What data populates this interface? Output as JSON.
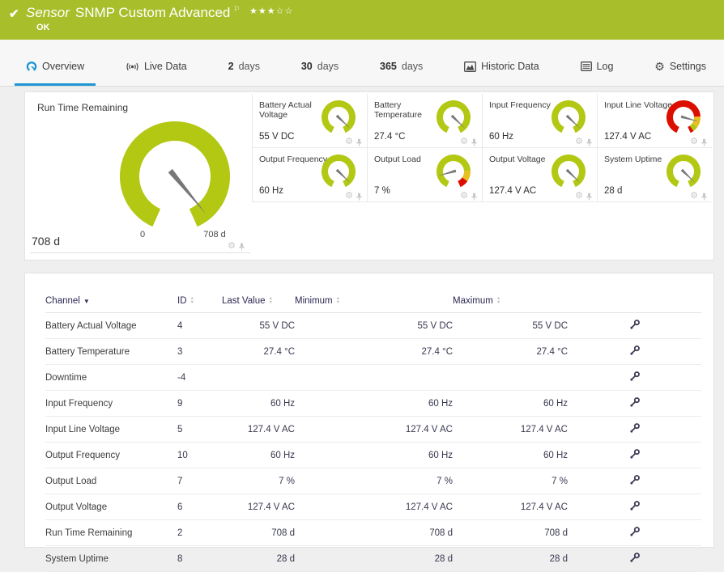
{
  "header": {
    "kind_label": "Sensor",
    "title": "SNMP Custom Advanced",
    "status": "OK",
    "stars_text": "★★★☆☆",
    "stars_filled": 3,
    "stars_total": 5
  },
  "tabs": [
    {
      "label": "Overview",
      "active": true
    },
    {
      "label": "Live Data"
    },
    {
      "number": "2",
      "label": "days"
    },
    {
      "number": "30",
      "label": "days"
    },
    {
      "number": "365",
      "label": "days"
    },
    {
      "label": "Historic Data"
    },
    {
      "label": "Log"
    },
    {
      "label": "Settings"
    }
  ],
  "gauges": {
    "main": {
      "title": "Run Time Remaining",
      "value": "708 d",
      "scale_min_label": "0",
      "scale_max_label": "708 d",
      "segments": [
        {
          "color": "#b3c813",
          "from": 0,
          "to": 1
        }
      ],
      "needle": 0.95
    },
    "small": [
      {
        "title": "Battery Actual Voltage",
        "value": "55 V DC",
        "segments": [
          {
            "color": "#b3c813",
            "from": 0,
            "to": 1
          }
        ],
        "needle": 0.93
      },
      {
        "title": "Battery Temperature",
        "value": "27.4 °C",
        "segments": [
          {
            "color": "#b3c813",
            "from": 0,
            "to": 1
          }
        ],
        "needle": 0.93
      },
      {
        "title": "Input Frequency",
        "value": "60 Hz",
        "segments": [
          {
            "color": "#b3c813",
            "from": 0,
            "to": 1
          }
        ],
        "needle": 0.93
      },
      {
        "title": "Input Line Voltage",
        "value": "127.4 V AC",
        "segments": [
          {
            "color": "#dc0e00",
            "from": 0,
            "to": 0.78
          },
          {
            "color": "#e8c020",
            "from": 0.78,
            "to": 0.9
          },
          {
            "color": "#b3c813",
            "from": 0.9,
            "to": 0.96
          },
          {
            "color": "#dc0e00",
            "from": 0.96,
            "to": 1
          }
        ],
        "needle": 0.84
      },
      {
        "title": "Output Frequency",
        "value": "60 Hz",
        "segments": [
          {
            "color": "#b3c813",
            "from": 0,
            "to": 1
          }
        ],
        "needle": 0.93
      },
      {
        "title": "Output Load",
        "value": "7 %",
        "segments": [
          {
            "color": "#b3c813",
            "from": 0,
            "to": 0.78
          },
          {
            "color": "#e8c020",
            "from": 0.78,
            "to": 0.9
          },
          {
            "color": "#dc0e00",
            "from": 0.9,
            "to": 1
          }
        ],
        "needle": 0.16
      },
      {
        "title": "Output Voltage",
        "value": "127.4 V AC",
        "segments": [
          {
            "color": "#b3c813",
            "from": 0,
            "to": 1
          }
        ],
        "needle": 0.93
      },
      {
        "title": "System Uptime",
        "value": "28 d",
        "segments": [
          {
            "color": "#b3c813",
            "from": 0,
            "to": 1
          }
        ],
        "needle": 0.93
      }
    ]
  },
  "table": {
    "columns": {
      "channel": "Channel",
      "id": "ID",
      "last": "Last Value",
      "min": "Minimum",
      "max": "Maximum"
    },
    "rows": [
      {
        "channel": "Battery Actual Voltage",
        "id": "4",
        "last": "55 V DC",
        "min": "55 V DC",
        "max": "55 V DC"
      },
      {
        "channel": "Battery Temperature",
        "id": "3",
        "last": "27.4 °C",
        "min": "27.4 °C",
        "max": "27.4 °C"
      },
      {
        "channel": "Downtime",
        "id": "-4",
        "last": "",
        "min": "",
        "max": ""
      },
      {
        "channel": "Input Frequency",
        "id": "9",
        "last": "60 Hz",
        "min": "60 Hz",
        "max": "60 Hz"
      },
      {
        "channel": "Input Line Voltage",
        "id": "5",
        "last": "127.4 V AC",
        "min": "127.4 V AC",
        "max": "127.4 V AC"
      },
      {
        "channel": "Output Frequency",
        "id": "10",
        "last": "60 Hz",
        "min": "60 Hz",
        "max": "60 Hz"
      },
      {
        "channel": "Output Load",
        "id": "7",
        "last": "7 %",
        "min": "7 %",
        "max": "7 %"
      },
      {
        "channel": "Output Voltage",
        "id": "6",
        "last": "127.4 V AC",
        "min": "127.4 V AC",
        "max": "127.4 V AC"
      },
      {
        "channel": "Run Time Remaining",
        "id": "2",
        "last": "708 d",
        "min": "708 d",
        "max": "708 d"
      },
      {
        "channel": "System Uptime",
        "id": "8",
        "last": "28 d",
        "min": "28 d",
        "max": "28 d"
      }
    ]
  },
  "colors": {
    "header_green": "#a8bf2b",
    "accent_blue": "#1e96d4",
    "gauge_green": "#b3c813",
    "gauge_yellow": "#e8c020",
    "gauge_red": "#dc0e00",
    "needle_gray": "#777777"
  }
}
